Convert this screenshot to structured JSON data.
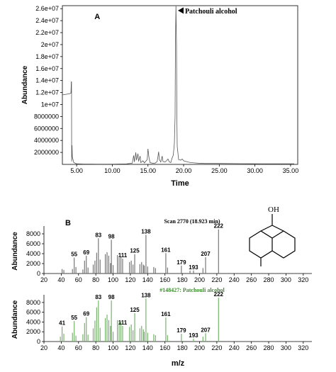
{
  "chart_data": [
    {
      "type": "line",
      "panel_label": "A",
      "xlabel": "Time",
      "ylabel": "Abundance",
      "xlim": [
        3,
        36
      ],
      "ylim": [
        0,
        26500000
      ],
      "x_ticks": [
        5,
        10,
        15,
        20,
        25,
        30,
        35
      ],
      "x_tick_labels": [
        "5.00",
        "10.00",
        "15.00",
        "20.00",
        "25.00",
        "30.00",
        "35.00"
      ],
      "y_ticks": [
        2000000,
        4000000,
        6000000,
        8000000,
        10000000,
        12000000,
        14000000,
        16000000,
        18000000,
        20000000,
        22000000,
        24000000,
        26000000
      ],
      "y_tick_labels": [
        "2000000",
        "4000000",
        "6000000",
        "8000000",
        "1e+07",
        "1.2e+07",
        "1.4e+07",
        "1.6e+07",
        "1.8e+07",
        "2e+07",
        "2.2e+07",
        "2.4e+07",
        "2.6e+07"
      ],
      "annotation": {
        "text": "Patchouli alcohol",
        "x": 18.9,
        "y": 26400000
      },
      "series": [
        {
          "color": "#555555",
          "points": [
            [
              3.0,
              11600000
            ],
            [
              3.5,
              11700000
            ],
            [
              4.0,
              11800000
            ],
            [
              4.1,
              11850000
            ],
            [
              4.2,
              11900000
            ],
            [
              4.25,
              13800000
            ],
            [
              4.28,
              13800000
            ],
            [
              4.3,
              500000
            ],
            [
              4.35,
              3200000
            ],
            [
              4.4,
              1200000
            ],
            [
              4.6,
              300000
            ],
            [
              5.0,
              100000
            ],
            [
              6.0,
              60000
            ],
            [
              8.0,
              50000
            ],
            [
              10.0,
              50000
            ],
            [
              12.0,
              80000
            ],
            [
              12.8,
              200000
            ],
            [
              13.0,
              1500000
            ],
            [
              13.1,
              400000
            ],
            [
              13.3,
              2000000
            ],
            [
              13.4,
              700000
            ],
            [
              13.6,
              1800000
            ],
            [
              13.7,
              500000
            ],
            [
              13.9,
              1400000
            ],
            [
              14.0,
              300000
            ],
            [
              14.3,
              600000
            ],
            [
              14.5,
              250000
            ],
            [
              14.9,
              800000
            ],
            [
              15.0,
              2600000
            ],
            [
              15.15,
              1100000
            ],
            [
              15.3,
              300000
            ],
            [
              15.6,
              200000
            ],
            [
              16.0,
              200000
            ],
            [
              16.3,
              500000
            ],
            [
              16.5,
              2100000
            ],
            [
              16.6,
              800000
            ],
            [
              16.8,
              400000
            ],
            [
              17.0,
              1400000
            ],
            [
              17.1,
              500000
            ],
            [
              17.4,
              400000
            ],
            [
              17.6,
              600000
            ],
            [
              17.8,
              900000
            ],
            [
              18.0,
              400000
            ],
            [
              18.2,
              300000
            ],
            [
              18.4,
              1100000
            ],
            [
              18.55,
              1500000
            ],
            [
              18.7,
              3500000
            ],
            [
              18.8,
              8000000
            ],
            [
              18.85,
              20000000
            ],
            [
              18.92,
              26400000
            ],
            [
              19.0,
              20000000
            ],
            [
              19.05,
              8000000
            ],
            [
              19.1,
              3000000
            ],
            [
              19.3,
              800000
            ],
            [
              19.6,
              700000
            ],
            [
              19.8,
              900000
            ],
            [
              20.0,
              600000
            ],
            [
              20.3,
              500000
            ],
            [
              20.6,
              400000
            ],
            [
              21.0,
              300000
            ],
            [
              21.5,
              250000
            ],
            [
              22.0,
              200000
            ],
            [
              23.0,
              150000
            ],
            [
              25.0,
              150000
            ],
            [
              28.0,
              120000
            ],
            [
              31.0,
              100000
            ],
            [
              33.0,
              100000
            ],
            [
              35.5,
              100000
            ]
          ]
        }
      ]
    },
    {
      "type": "bar",
      "panel_label": "B",
      "title": "Scan 2770 (18.923 min)",
      "ylabel": "Abundance",
      "xlim": [
        20,
        330
      ],
      "ylim": [
        0,
        9000
      ],
      "x_ticks": [
        20,
        40,
        60,
        80,
        100,
        120,
        140,
        160,
        180,
        200,
        220,
        240,
        260,
        280,
        300,
        320
      ],
      "y_ticks": [
        0,
        2000,
        4000,
        6000,
        8000
      ],
      "color": "#777777",
      "peaks": [
        [
          41,
          900
        ],
        [
          43,
          700
        ],
        [
          53,
          900
        ],
        [
          55,
          3200
        ],
        [
          57,
          1300
        ],
        [
          65,
          800
        ],
        [
          67,
          2600
        ],
        [
          69,
          3600
        ],
        [
          71,
          1200
        ],
        [
          77,
          1800
        ],
        [
          79,
          2600
        ],
        [
          81,
          4200
        ],
        [
          83,
          7100
        ],
        [
          85,
          2800
        ],
        [
          91,
          3900
        ],
        [
          93,
          4300
        ],
        [
          95,
          3600
        ],
        [
          97,
          2100
        ],
        [
          98,
          6800
        ],
        [
          100,
          1700
        ],
        [
          105,
          3700
        ],
        [
          107,
          3200
        ],
        [
          109,
          3300
        ],
        [
          111,
          3000
        ],
        [
          119,
          2300
        ],
        [
          121,
          2600
        ],
        [
          123,
          1800
        ],
        [
          125,
          3900
        ],
        [
          131,
          1900
        ],
        [
          133,
          2300
        ],
        [
          135,
          1800
        ],
        [
          136,
          1600
        ],
        [
          138,
          7800
        ],
        [
          140,
          1400
        ],
        [
          147,
          1300
        ],
        [
          149,
          1100
        ],
        [
          161,
          4100
        ],
        [
          163,
          1200
        ],
        [
          179,
          1600
        ],
        [
          189,
          600
        ],
        [
          193,
          600
        ],
        [
          204,
          1100
        ],
        [
          207,
          3300
        ],
        [
          222,
          8900
        ]
      ],
      "peak_labels": [
        {
          "text": "55",
          "x": 55,
          "y": 3200
        },
        {
          "text": "69",
          "x": 69,
          "y": 3600
        },
        {
          "text": "83",
          "x": 83,
          "y": 7100
        },
        {
          "text": "98",
          "x": 98,
          "y": 6800
        },
        {
          "text": "111",
          "x": 111,
          "y": 3000
        },
        {
          "text": "125",
          "x": 125,
          "y": 3900
        },
        {
          "text": "138",
          "x": 138,
          "y": 7800
        },
        {
          "text": "161",
          "x": 161,
          "y": 4100
        },
        {
          "text": "179",
          "x": 179,
          "y": 1600
        },
        {
          "text": "193",
          "x": 193,
          "y": 600
        },
        {
          "text": "207",
          "x": 207,
          "y": 3300
        },
        {
          "text": "222",
          "x": 222,
          "y": 8900
        }
      ],
      "structure_label": "OH"
    },
    {
      "type": "bar",
      "title": "#148427: Patchouli alcohol",
      "xlabel": "m/z",
      "ylabel": "Abundance",
      "xlim": [
        20,
        330
      ],
      "ylim": [
        0,
        9000
      ],
      "x_ticks": [
        20,
        40,
        60,
        80,
        100,
        120,
        140,
        160,
        180,
        200,
        220,
        240,
        260,
        280,
        300,
        320
      ],
      "y_ticks": [
        0,
        2000,
        4000,
        6000,
        8000
      ],
      "color": "#79b26f",
      "peaks": [
        [
          39,
          1000
        ],
        [
          41,
          3100
        ],
        [
          43,
          1600
        ],
        [
          53,
          1800
        ],
        [
          55,
          4200
        ],
        [
          57,
          1200
        ],
        [
          65,
          1500
        ],
        [
          67,
          3800
        ],
        [
          69,
          5000
        ],
        [
          71,
          1400
        ],
        [
          77,
          2700
        ],
        [
          79,
          4300
        ],
        [
          81,
          7000
        ],
        [
          83,
          8400
        ],
        [
          85,
          2800
        ],
        [
          91,
          4800
        ],
        [
          93,
          5500
        ],
        [
          95,
          4400
        ],
        [
          97,
          3200
        ],
        [
          98,
          8400
        ],
        [
          100,
          2000
        ],
        [
          105,
          4400
        ],
        [
          107,
          3900
        ],
        [
          109,
          4000
        ],
        [
          111,
          3200
        ],
        [
          119,
          3000
        ],
        [
          121,
          3500
        ],
        [
          123,
          2300
        ],
        [
          125,
          5800
        ],
        [
          131,
          2700
        ],
        [
          133,
          3200
        ],
        [
          135,
          2500
        ],
        [
          136,
          2000
        ],
        [
          138,
          8800
        ],
        [
          140,
          1800
        ],
        [
          147,
          1500
        ],
        [
          149,
          1300
        ],
        [
          161,
          4900
        ],
        [
          163,
          1300
        ],
        [
          179,
          1600
        ],
        [
          193,
          600
        ],
        [
          204,
          1000
        ],
        [
          207,
          1700
        ],
        [
          222,
          9000
        ]
      ],
      "peak_labels": [
        {
          "text": "41",
          "x": 41,
          "y": 3100
        },
        {
          "text": "55",
          "x": 55,
          "y": 4200
        },
        {
          "text": "69",
          "x": 69,
          "y": 5000
        },
        {
          "text": "83",
          "x": 83,
          "y": 8400
        },
        {
          "text": "98",
          "x": 98,
          "y": 8400
        },
        {
          "text": "111",
          "x": 111,
          "y": 3200
        },
        {
          "text": "125",
          "x": 125,
          "y": 5800
        },
        {
          "text": "138",
          "x": 138,
          "y": 8800
        },
        {
          "text": "161",
          "x": 161,
          "y": 4900
        },
        {
          "text": "179",
          "x": 179,
          "y": 1600
        },
        {
          "text": "193",
          "x": 193,
          "y": 600
        },
        {
          "text": "207",
          "x": 207,
          "y": 1700
        },
        {
          "text": "222",
          "x": 222,
          "y": 9000
        }
      ]
    }
  ]
}
